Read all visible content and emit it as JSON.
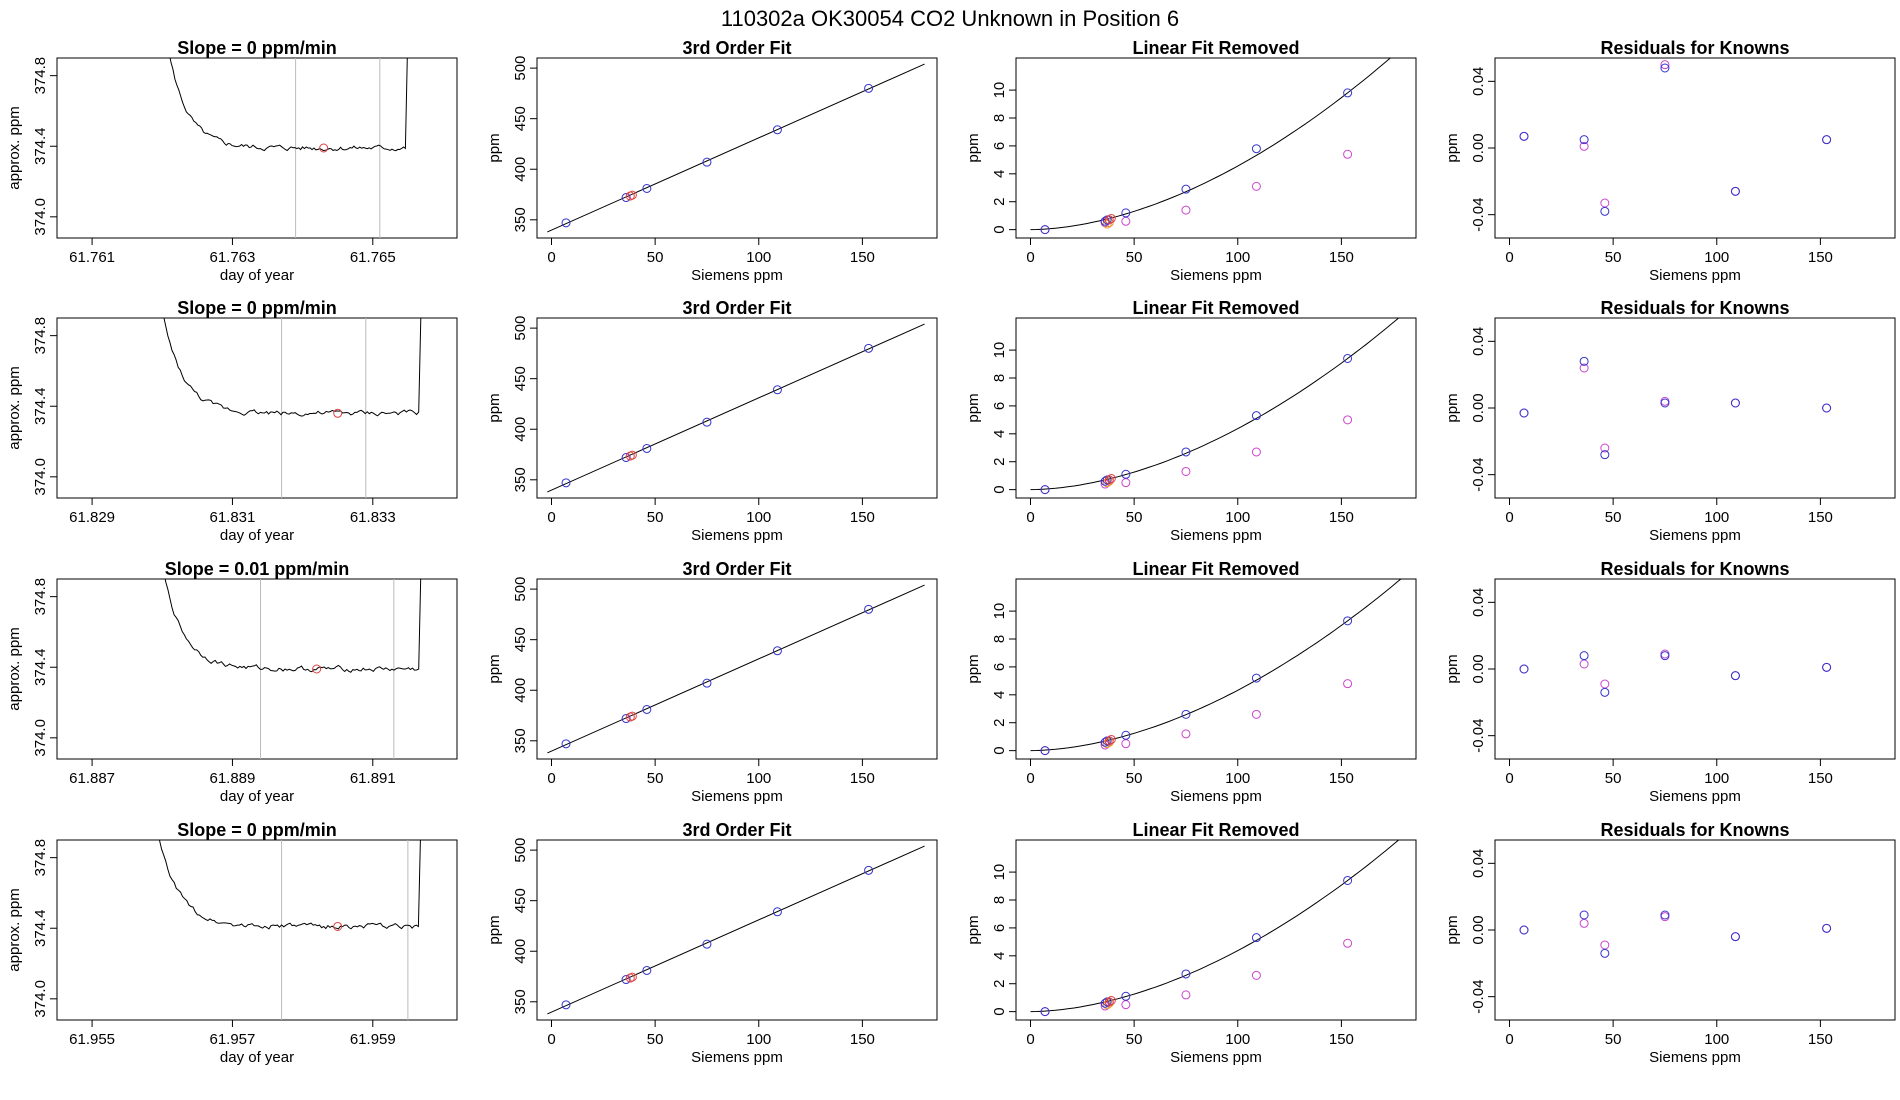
{
  "figure": {
    "title": "110302a     OK30054   CO2 Unknown in Position  6"
  },
  "colors": {
    "known": "#3333cc",
    "known_alt": "#cc44cc",
    "unknown": "#e04040",
    "unknown_alt": "#ee9a33",
    "trace": "#000000",
    "window": "#bbbbbb"
  },
  "chart_data": [
    {
      "row": 1,
      "type": "line",
      "title": "Slope =  0  ppm/min",
      "xlabel": "day of year",
      "ylabel": "approx. ppm",
      "xlim": [
        61.7605,
        61.7662
      ],
      "ylim": [
        373.88,
        374.9
      ],
      "xticks": [
        "61.761",
        "61.763",
        "61.765"
      ],
      "xtick_values": [
        61.761,
        61.763,
        61.765
      ],
      "yticks": [
        "374.0",
        "374.4",
        "374.8"
      ],
      "ytick_values": [
        374.0,
        374.4,
        374.8
      ],
      "window": [
        61.7639,
        61.7651
      ],
      "level": 374.39,
      "noise": 0.012,
      "trace_start": 61.7618,
      "trace_end": 61.7656,
      "unknown_point": {
        "x": 61.7643,
        "y": 374.39
      }
    },
    {
      "row": 1,
      "type": "scatter",
      "title": "3rd Order Fit",
      "xlabel": "Siemens ppm",
      "ylabel": "ppm",
      "xlim": [
        -7,
        186
      ],
      "ylim": [
        332,
        510
      ],
      "xticks": [
        "0",
        "50",
        "100",
        "150"
      ],
      "xtick_values": [
        0,
        50,
        100,
        150
      ],
      "yticks": [
        "350",
        "400",
        "450",
        "500"
      ],
      "ytick_values": [
        350,
        400,
        450,
        500
      ],
      "fit_line": {
        "x": [
          -2,
          180
        ],
        "y": [
          338,
          504
        ]
      },
      "knowns": {
        "x": [
          7,
          36,
          46,
          75,
          109,
          153
        ],
        "y": [
          347,
          372,
          381,
          407,
          439,
          480
        ]
      },
      "unknowns": {
        "x": [
          38,
          39
        ],
        "y": [
          373.5,
          374.4
        ]
      }
    },
    {
      "row": 1,
      "type": "scatter",
      "title": "Linear Fit Removed",
      "xlabel": "Siemens ppm",
      "ylabel": "ppm",
      "xlim": [
        -7,
        186
      ],
      "ylim": [
        -0.6,
        12.3
      ],
      "xticks": [
        "0",
        "50",
        "100",
        "150"
      ],
      "xtick_values": [
        0,
        50,
        100,
        150
      ],
      "yticks": [
        "0",
        "2",
        "4",
        "6",
        "8",
        "10"
      ],
      "ytick_values": [
        0,
        2,
        4,
        6,
        8,
        10
      ],
      "curve": {
        "x0": 0,
        "x1": 180,
        "y_at_153": 9.8
      },
      "knowns": {
        "x": [
          7,
          36,
          37,
          46,
          75,
          109,
          153
        ],
        "y": [
          0.0,
          0.6,
          0.7,
          1.2,
          2.9,
          5.8,
          9.8
        ]
      },
      "knowns_alt": {
        "x": [
          7,
          36,
          46,
          75,
          109,
          153
        ],
        "y": [
          0.0,
          0.5,
          0.6,
          1.4,
          3.1,
          5.4
        ]
      },
      "unknowns": {
        "x": [
          38,
          39
        ],
        "y": [
          0.7,
          0.8
        ]
      },
      "unknowns_alt": {
        "x": [
          37,
          38
        ],
        "y": [
          0.4,
          0.5
        ]
      }
    },
    {
      "row": 1,
      "type": "scatter",
      "title": "Residuals for Knowns",
      "xlabel": "Siemens ppm",
      "ylabel": "ppm",
      "xlim": [
        -7,
        186
      ],
      "ylim": [
        -0.054,
        0.054
      ],
      "xticks": [
        "0",
        "50",
        "100",
        "150"
      ],
      "xtick_values": [
        0,
        50,
        100,
        150
      ],
      "yticks": [
        "-0.04",
        "0.00",
        "0.04"
      ],
      "ytick_values": [
        -0.04,
        0.0,
        0.04
      ],
      "knowns": {
        "x": [
          7,
          36,
          46,
          75,
          109,
          153
        ],
        "y": [
          0.007,
          0.005,
          -0.038,
          0.048,
          -0.026,
          0.005
        ]
      },
      "knowns_alt": {
        "x": [
          7,
          36,
          46,
          75,
          109,
          153
        ],
        "y": [
          0.007,
          0.001,
          -0.033,
          0.05,
          -0.026,
          0.005
        ]
      }
    },
    {
      "row": 2,
      "type": "line",
      "title": "Slope =  0  ppm/min",
      "xlabel": "day of year",
      "ylabel": "approx. ppm",
      "xlim": [
        61.8285,
        61.8342
      ],
      "ylim": [
        373.88,
        374.9
      ],
      "xticks": [
        "61.829",
        "61.831",
        "61.833"
      ],
      "xtick_values": [
        61.829,
        61.831,
        61.833
      ],
      "yticks": [
        "374.0",
        "374.4",
        "374.8"
      ],
      "ytick_values": [
        374.0,
        374.4,
        374.8
      ],
      "window": [
        61.8317,
        61.8329
      ],
      "level": 374.36,
      "noise": 0.012,
      "trace_start": 61.8297,
      "trace_end": 61.8338,
      "unknown_point": {
        "x": 61.8325,
        "y": 374.36
      }
    },
    {
      "row": 2,
      "type": "scatter",
      "title": "3rd Order Fit",
      "xlabel": "Siemens ppm",
      "ylabel": "ppm",
      "xlim": [
        -7,
        186
      ],
      "ylim": [
        332,
        510
      ],
      "xticks": [
        "0",
        "50",
        "100",
        "150"
      ],
      "xtick_values": [
        0,
        50,
        100,
        150
      ],
      "yticks": [
        "350",
        "400",
        "450",
        "500"
      ],
      "ytick_values": [
        350,
        400,
        450,
        500
      ],
      "fit_line": {
        "x": [
          -2,
          180
        ],
        "y": [
          338,
          504
        ]
      },
      "knowns": {
        "x": [
          7,
          36,
          46,
          75,
          109,
          153
        ],
        "y": [
          347,
          372,
          381,
          407,
          439,
          480
        ]
      },
      "unknowns": {
        "x": [
          38,
          39
        ],
        "y": [
          373.5,
          374.4
        ]
      }
    },
    {
      "row": 2,
      "type": "scatter",
      "title": "Linear Fit Removed",
      "xlabel": "Siemens ppm",
      "ylabel": "ppm",
      "xlim": [
        -7,
        186
      ],
      "ylim": [
        -0.6,
        12.3
      ],
      "xticks": [
        "0",
        "50",
        "100",
        "150"
      ],
      "xtick_values": [
        0,
        50,
        100,
        150
      ],
      "yticks": [
        "0",
        "2",
        "4",
        "6",
        "8",
        "10"
      ],
      "ytick_values": [
        0,
        2,
        4,
        6,
        8,
        10
      ],
      "curve": {
        "x0": 0,
        "x1": 180,
        "y_at_153": 9.4
      },
      "knowns": {
        "x": [
          7,
          36,
          37,
          46,
          75,
          109,
          153
        ],
        "y": [
          0.0,
          0.6,
          0.7,
          1.1,
          2.7,
          5.3,
          9.4
        ]
      },
      "knowns_alt": {
        "x": [
          7,
          36,
          46,
          75,
          109,
          153
        ],
        "y": [
          0.0,
          0.4,
          0.5,
          1.3,
          2.7,
          5.0
        ]
      },
      "unknowns": {
        "x": [
          38,
          39
        ],
        "y": [
          0.7,
          0.8
        ]
      },
      "unknowns_alt": {
        "x": [
          37,
          38
        ],
        "y": [
          0.5,
          0.6
        ]
      }
    },
    {
      "row": 2,
      "type": "scatter",
      "title": "Residuals for Knowns",
      "xlabel": "Siemens ppm",
      "ylabel": "ppm",
      "xlim": [
        -7,
        186
      ],
      "ylim": [
        -0.054,
        0.054
      ],
      "xticks": [
        "0",
        "50",
        "100",
        "150"
      ],
      "xtick_values": [
        0,
        50,
        100,
        150
      ],
      "yticks": [
        "-0.04",
        "0.00",
        "0.04"
      ],
      "ytick_values": [
        -0.04,
        0.0,
        0.04
      ],
      "knowns": {
        "x": [
          7,
          36,
          46,
          75,
          109,
          153
        ],
        "y": [
          -0.003,
          0.028,
          -0.028,
          0.003,
          0.003,
          0.0
        ]
      },
      "knowns_alt": {
        "x": [
          7,
          36,
          46,
          75,
          109,
          153
        ],
        "y": [
          -0.003,
          0.024,
          -0.024,
          0.004,
          0.003,
          0.0
        ]
      }
    },
    {
      "row": 3,
      "type": "line",
      "title": "Slope =  0.01  ppm/min",
      "xlabel": "day of year",
      "ylabel": "approx. ppm",
      "xlim": [
        61.8865,
        61.8922
      ],
      "ylim": [
        373.88,
        374.9
      ],
      "xticks": [
        "61.887",
        "61.889",
        "61.891"
      ],
      "xtick_values": [
        61.887,
        61.889,
        61.891
      ],
      "yticks": [
        "374.0",
        "374.4",
        "374.8"
      ],
      "ytick_values": [
        374.0,
        374.4,
        374.8
      ],
      "window": [
        61.8894,
        61.8913
      ],
      "level": 374.39,
      "noise": 0.012,
      "trace_start": 61.8877,
      "trace_end": 61.8918,
      "unknown_point": {
        "x": 61.8902,
        "y": 374.39
      }
    },
    {
      "row": 3,
      "type": "scatter",
      "title": "3rd Order Fit",
      "xlabel": "Siemens ppm",
      "ylabel": "ppm",
      "xlim": [
        -7,
        186
      ],
      "ylim": [
        332,
        510
      ],
      "xticks": [
        "0",
        "50",
        "100",
        "150"
      ],
      "xtick_values": [
        0,
        50,
        100,
        150
      ],
      "yticks": [
        "350",
        "400",
        "450",
        "500"
      ],
      "ytick_values": [
        350,
        400,
        450,
        500
      ],
      "fit_line": {
        "x": [
          -2,
          180
        ],
        "y": [
          338,
          504
        ]
      },
      "knowns": {
        "x": [
          7,
          36,
          46,
          75,
          109,
          153
        ],
        "y": [
          347,
          372,
          381,
          407,
          439,
          480
        ]
      },
      "unknowns": {
        "x": [
          38,
          39
        ],
        "y": [
          373.5,
          374.4
        ]
      }
    },
    {
      "row": 3,
      "type": "scatter",
      "title": "Linear Fit Removed",
      "xlabel": "Siemens ppm",
      "ylabel": "ppm",
      "xlim": [
        -7,
        186
      ],
      "ylim": [
        -0.6,
        12.3
      ],
      "xticks": [
        "0",
        "50",
        "100",
        "150"
      ],
      "xtick_values": [
        0,
        50,
        100,
        150
      ],
      "yticks": [
        "0",
        "2",
        "4",
        "6",
        "8",
        "10"
      ],
      "ytick_values": [
        0,
        2,
        4,
        6,
        8,
        10
      ],
      "curve": {
        "x0": 0,
        "x1": 180,
        "y_at_153": 9.3
      },
      "knowns": {
        "x": [
          7,
          36,
          37,
          46,
          75,
          109,
          153
        ],
        "y": [
          0.0,
          0.6,
          0.7,
          1.1,
          2.6,
          5.2,
          9.3
        ]
      },
      "knowns_alt": {
        "x": [
          7,
          36,
          46,
          75,
          109,
          153
        ],
        "y": [
          0.0,
          0.4,
          0.5,
          1.2,
          2.6,
          4.8
        ]
      },
      "unknowns": {
        "x": [
          38,
          39
        ],
        "y": [
          0.7,
          0.8
        ]
      },
      "unknowns_alt": {
        "x": [
          37,
          38
        ],
        "y": [
          0.5,
          0.6
        ]
      }
    },
    {
      "row": 3,
      "type": "scatter",
      "title": "Residuals for Knowns",
      "xlabel": "Siemens ppm",
      "ylabel": "ppm",
      "xlim": [
        -7,
        186
      ],
      "ylim": [
        -0.054,
        0.054
      ],
      "xticks": [
        "0",
        "50",
        "100",
        "150"
      ],
      "xtick_values": [
        0,
        50,
        100,
        150
      ],
      "yticks": [
        "-0.04",
        "0.00",
        "0.04"
      ],
      "ytick_values": [
        -0.04,
        0.0,
        0.04
      ],
      "knowns": {
        "x": [
          7,
          36,
          46,
          75,
          109,
          153
        ],
        "y": [
          0.0,
          0.008,
          -0.014,
          0.008,
          -0.004,
          0.001
        ]
      },
      "knowns_alt": {
        "x": [
          7,
          36,
          46,
          75,
          109,
          153
        ],
        "y": [
          0.0,
          0.003,
          -0.009,
          0.009,
          -0.004,
          0.001
        ]
      }
    },
    {
      "row": 4,
      "type": "line",
      "title": "Slope =  0  ppm/min",
      "xlabel": "day of year",
      "ylabel": "approx. ppm",
      "xlim": [
        61.9545,
        61.9602
      ],
      "ylim": [
        373.88,
        374.9
      ],
      "xticks": [
        "61.955",
        "61.957",
        "61.959"
      ],
      "xtick_values": [
        61.955,
        61.957,
        61.959
      ],
      "yticks": [
        "374.0",
        "374.4",
        "374.8"
      ],
      "ytick_values": [
        374.0,
        374.4,
        374.8
      ],
      "window": [
        61.9577,
        61.9595
      ],
      "level": 374.41,
      "noise": 0.012,
      "trace_start": 61.9556,
      "trace_end": 61.9598,
      "unknown_point": {
        "x": 61.9585,
        "y": 374.41
      }
    },
    {
      "row": 4,
      "type": "scatter",
      "title": "3rd Order Fit",
      "xlabel": "Siemens ppm",
      "ylabel": "ppm",
      "xlim": [
        -7,
        186
      ],
      "ylim": [
        332,
        510
      ],
      "xticks": [
        "0",
        "50",
        "100",
        "150"
      ],
      "xtick_values": [
        0,
        50,
        100,
        150
      ],
      "yticks": [
        "350",
        "400",
        "450",
        "500"
      ],
      "ytick_values": [
        350,
        400,
        450,
        500
      ],
      "fit_line": {
        "x": [
          -2,
          180
        ],
        "y": [
          338,
          504
        ]
      },
      "knowns": {
        "x": [
          7,
          36,
          46,
          75,
          109,
          153
        ],
        "y": [
          347,
          372,
          381,
          407,
          439,
          480
        ]
      },
      "unknowns": {
        "x": [
          38,
          39
        ],
        "y": [
          373.5,
          374.4
        ]
      }
    },
    {
      "row": 4,
      "type": "scatter",
      "title": "Linear Fit Removed",
      "xlabel": "Siemens ppm",
      "ylabel": "ppm",
      "xlim": [
        -7,
        186
      ],
      "ylim": [
        -0.6,
        12.3
      ],
      "xticks": [
        "0",
        "50",
        "100",
        "150"
      ],
      "xtick_values": [
        0,
        50,
        100,
        150
      ],
      "yticks": [
        "0",
        "2",
        "4",
        "6",
        "8",
        "10"
      ],
      "ytick_values": [
        0,
        2,
        4,
        6,
        8,
        10
      ],
      "curve": {
        "x0": 0,
        "x1": 180,
        "y_at_153": 9.4
      },
      "knowns": {
        "x": [
          7,
          36,
          37,
          46,
          75,
          109,
          153
        ],
        "y": [
          0.0,
          0.6,
          0.7,
          1.1,
          2.7,
          5.3,
          9.4
        ]
      },
      "knowns_alt": {
        "x": [
          7,
          36,
          46,
          75,
          109,
          153
        ],
        "y": [
          0.0,
          0.4,
          0.5,
          1.2,
          2.6,
          4.9
        ]
      },
      "unknowns": {
        "x": [
          38,
          39
        ],
        "y": [
          0.7,
          0.8
        ]
      },
      "unknowns_alt": {
        "x": [
          37,
          38
        ],
        "y": [
          0.5,
          0.6
        ]
      }
    },
    {
      "row": 4,
      "type": "scatter",
      "title": "Residuals for Knowns",
      "xlabel": "Siemens ppm",
      "ylabel": "ppm",
      "xlim": [
        -7,
        186
      ],
      "ylim": [
        -0.054,
        0.054
      ],
      "xticks": [
        "0",
        "50",
        "100",
        "150"
      ],
      "xtick_values": [
        0,
        50,
        100,
        150
      ],
      "yticks": [
        "-0.04",
        "0.00",
        "0.04"
      ],
      "ytick_values": [
        -0.04,
        0.0,
        0.04
      ],
      "knowns": {
        "x": [
          7,
          36,
          46,
          75,
          109,
          153
        ],
        "y": [
          0.0,
          0.009,
          -0.014,
          0.009,
          -0.004,
          0.001
        ]
      },
      "knowns_alt": {
        "x": [
          7,
          36,
          46,
          75,
          109,
          153
        ],
        "y": [
          0.0,
          0.004,
          -0.009,
          0.008,
          -0.004,
          0.001
        ]
      }
    }
  ]
}
